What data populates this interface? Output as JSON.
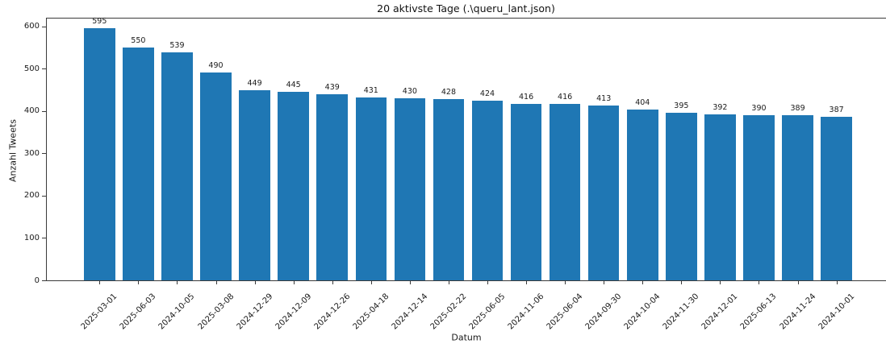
{
  "chart_data": {
    "type": "bar",
    "title": "20 aktivste Tage (.\\queru_lant.json)",
    "xlabel": "Datum",
    "ylabel": "Anzahl Tweets",
    "categories": [
      "2025-03-01",
      "2025-06-03",
      "2024-10-05",
      "2025-03-08",
      "2024-12-29",
      "2024-12-09",
      "2024-12-26",
      "2025-04-18",
      "2024-12-14",
      "2025-02-22",
      "2025-06-05",
      "2024-11-06",
      "2025-06-04",
      "2024-09-30",
      "2024-10-04",
      "2024-11-30",
      "2024-12-01",
      "2025-06-13",
      "2024-11-24",
      "2024-10-01"
    ],
    "values": [
      595,
      550,
      539,
      490,
      449,
      445,
      439,
      431,
      430,
      428,
      424,
      416,
      416,
      413,
      404,
      395,
      392,
      390,
      389,
      387
    ],
    "value_labels_shown": true,
    "bar_color": "#1f77b4",
    "ylim": [
      0,
      620
    ],
    "yticks": [
      0,
      100,
      200,
      300,
      400,
      500,
      600
    ],
    "x_tick_rotation": 45,
    "grid": false,
    "legend": null
  }
}
